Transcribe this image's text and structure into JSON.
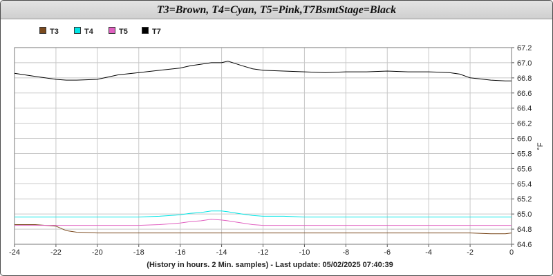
{
  "chart_data": {
    "type": "line",
    "title": "T3=Brown, T4=Cyan, T5=Pink,T7BsmtStage=Black",
    "xlabel": "(History in hours. 2 Min. samples) - Last update: 05/02/2025 07:40:39",
    "ylabel": "°F",
    "xlim": [
      -24,
      0
    ],
    "ylim": [
      64.6,
      67.2
    ],
    "x_ticks": [
      "-24",
      "-22",
      "-20",
      "-18",
      "-16",
      "-14",
      "-12",
      "-10",
      "-8",
      "-6",
      "-4",
      "-2",
      "0"
    ],
    "y_ticks": [
      "64.6",
      "64.8",
      "65.0",
      "65.2",
      "65.4",
      "65.6",
      "65.8",
      "66.0",
      "66.2",
      "66.4",
      "66.6",
      "66.8",
      "67.0",
      "67.2"
    ],
    "grid": true,
    "legend_position": "top-left",
    "x": [
      -24,
      -23,
      -22,
      -21.5,
      -21,
      -20,
      -19,
      -18,
      -17,
      -16,
      -15.5,
      -15,
      -14.5,
      -14,
      -13.7,
      -13,
      -12.5,
      -12,
      -11,
      -10,
      -9,
      -8,
      -7,
      -6,
      -5,
      -4,
      -3,
      -2.5,
      -2,
      -1,
      -0.3,
      0
    ],
    "series": [
      {
        "name": "T3",
        "color": "#7b4a1e",
        "values": [
          64.86,
          64.86,
          64.84,
          64.78,
          64.76,
          64.75,
          64.75,
          64.75,
          64.75,
          64.75,
          64.75,
          64.75,
          64.75,
          64.75,
          64.75,
          64.75,
          64.75,
          64.75,
          64.75,
          64.75,
          64.75,
          64.75,
          64.75,
          64.75,
          64.75,
          64.75,
          64.75,
          64.75,
          64.75,
          64.74,
          64.74,
          64.75
        ]
      },
      {
        "name": "T4",
        "color": "#00e5e5",
        "values": [
          64.96,
          64.96,
          64.96,
          64.96,
          64.96,
          64.96,
          64.96,
          64.96,
          64.97,
          64.99,
          65.01,
          65.02,
          65.04,
          65.04,
          65.03,
          65.0,
          64.98,
          64.97,
          64.97,
          64.96,
          64.96,
          64.96,
          64.96,
          64.96,
          64.96,
          64.96,
          64.96,
          64.96,
          64.96,
          64.96,
          64.96,
          64.96
        ]
      },
      {
        "name": "T5",
        "color": "#e060c0",
        "values": [
          64.85,
          64.85,
          64.85,
          64.85,
          64.85,
          64.85,
          64.85,
          64.85,
          64.86,
          64.88,
          64.9,
          64.91,
          64.93,
          64.92,
          64.91,
          64.88,
          64.86,
          64.85,
          64.85,
          64.85,
          64.85,
          64.85,
          64.85,
          64.85,
          64.85,
          64.85,
          64.85,
          64.85,
          64.85,
          64.85,
          64.85,
          64.85
        ]
      },
      {
        "name": "T7",
        "color": "#000000",
        "values": [
          66.86,
          66.82,
          66.78,
          66.77,
          66.77,
          66.78,
          66.84,
          66.87,
          66.9,
          66.93,
          66.96,
          66.98,
          67.0,
          67.0,
          67.02,
          66.96,
          66.92,
          66.9,
          66.89,
          66.88,
          66.87,
          66.88,
          66.88,
          66.89,
          66.88,
          66.88,
          66.87,
          66.85,
          66.8,
          66.77,
          66.76,
          66.76
        ]
      }
    ]
  }
}
